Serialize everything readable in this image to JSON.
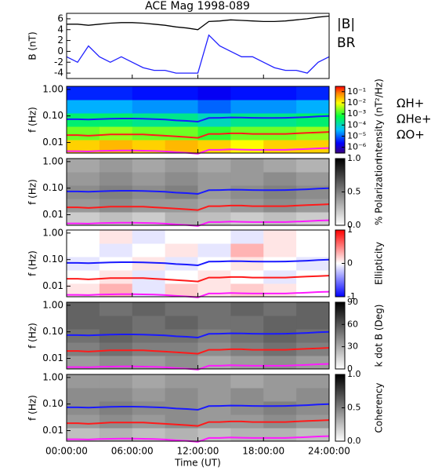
{
  "chart_data": [
    {
      "type": "line",
      "title": "ACE Mag 1998-089",
      "ylabel": "B (nT)",
      "x": [
        0,
        1,
        2,
        3,
        4,
        5,
        6,
        7,
        8,
        9,
        10,
        11,
        12,
        13,
        14,
        15,
        16,
        17,
        18,
        19,
        20,
        21,
        22,
        23,
        24
      ],
      "series": [
        {
          "name": "|B|",
          "color": "#000000",
          "values": [
            5.0,
            5.0,
            4.8,
            5.0,
            5.2,
            5.3,
            5.3,
            5.2,
            5.0,
            4.8,
            4.5,
            4.3,
            4.0,
            5.5,
            5.6,
            5.8,
            5.7,
            5.6,
            5.5,
            5.5,
            5.6,
            5.8,
            6.0,
            6.3,
            6.5
          ]
        },
        {
          "name": "BR",
          "color": "#2020ff",
          "values": [
            -1,
            -2,
            1,
            -1,
            -2,
            -1,
            -2,
            -3,
            -3.5,
            -3.5,
            -4,
            -4,
            -4,
            3,
            1,
            0,
            -1,
            -1,
            -2,
            -3,
            -3.5,
            -3.5,
            -4,
            -2,
            -1
          ]
        }
      ],
      "ylim": [
        -5,
        7
      ],
      "yticks": [
        -4,
        -2,
        0,
        2,
        4,
        6
      ]
    },
    {
      "type": "heatmap",
      "ylabel": "f (Hz)",
      "zlabel": "Intensity (nT²/Hz)",
      "log_y": true,
      "log_z": true,
      "colormap": "jet",
      "ylim": [
        0.004,
        1.3
      ],
      "yticks": [
        {
          "value": 1,
          "label": "1.00"
        },
        {
          "value": 0.1,
          "label": "0.10"
        },
        {
          "value": 0.01,
          "label": "0.01"
        }
      ],
      "zlim": [
        3e-07,
        0.3
      ],
      "zticks": [
        {
          "value": 0.1,
          "label": "10⁻¹"
        },
        {
          "value": 0.01,
          "label": "10⁻²"
        },
        {
          "value": 0.001,
          "label": "10⁻³"
        },
        {
          "value": 0.0001,
          "label": "10⁻⁴"
        },
        {
          "value": 1e-05,
          "label": "10⁻⁵"
        },
        {
          "value": 1e-06,
          "label": "10⁻⁶"
        }
      ],
      "z": [
        [
          0.02,
          0.03,
          0.02,
          0.03,
          0.02,
          0.01,
          0.02,
          0.02
        ],
        [
          0.002,
          0.003,
          0.002,
          0.002,
          0.001,
          0.002,
          0.002,
          0.003
        ],
        [
          0.0003,
          0.0003,
          0.0002,
          0.0002,
          0.0001,
          0.0002,
          0.0002,
          0.0003
        ],
        [
          3e-05,
          3e-05,
          2e-05,
          2e-05,
          1e-05,
          2e-05,
          2e-05,
          3e-05
        ],
        [
          4e-06,
          4e-06,
          3e-06,
          3e-06,
          2e-06,
          3e-06,
          3e-06,
          4e-06
        ]
      ],
      "x": [
        0,
        1,
        2,
        3,
        4,
        5,
        6,
        7,
        8,
        9,
        10,
        11,
        12,
        13,
        14,
        15,
        16,
        17,
        18,
        19,
        20,
        21,
        22,
        23,
        24
      ],
      "series": [
        {
          "name": "ΩH+",
          "color": "#1a1aff",
          "values": [
            0.075,
            0.075,
            0.073,
            0.076,
            0.079,
            0.08,
            0.08,
            0.079,
            0.076,
            0.073,
            0.068,
            0.065,
            0.061,
            0.084,
            0.085,
            0.088,
            0.087,
            0.085,
            0.084,
            0.084,
            0.085,
            0.088,
            0.091,
            0.096,
            0.099
          ]
        },
        {
          "name": "ΩHe+",
          "color": "#ff1a1a",
          "values": [
            0.019,
            0.019,
            0.018,
            0.019,
            0.02,
            0.02,
            0.02,
            0.02,
            0.019,
            0.018,
            0.017,
            0.016,
            0.015,
            0.021,
            0.021,
            0.022,
            0.022,
            0.021,
            0.021,
            0.021,
            0.021,
            0.022,
            0.023,
            0.024,
            0.025
          ]
        },
        {
          "name": "ΩO+",
          "color": "#ff1aff",
          "values": [
            0.0047,
            0.0047,
            0.0046,
            0.0048,
            0.0049,
            0.005,
            0.005,
            0.0049,
            0.0048,
            0.0046,
            0.0043,
            0.0041,
            0.0038,
            0.0053,
            0.0053,
            0.0055,
            0.0054,
            0.0053,
            0.0053,
            0.0053,
            0.0053,
            0.0055,
            0.0057,
            0.006,
            0.0062
          ]
        }
      ]
    },
    {
      "type": "heatmap",
      "ylabel": "f (Hz)",
      "zlabel": "% Polarization",
      "log_y": true,
      "colormap": "gray",
      "ylim": [
        0.004,
        1.3
      ],
      "yticks": [
        {
          "value": 1,
          "label": "1.00"
        },
        {
          "value": 0.1,
          "label": "0.10"
        },
        {
          "value": 0.01,
          "label": "0.01"
        }
      ],
      "zlim": [
        0,
        1
      ],
      "zticks": [
        {
          "value": 1,
          "label": "1.0"
        },
        {
          "value": 0.5,
          "label": "0.5"
        },
        {
          "value": 0,
          "label": "0.0"
        }
      ],
      "z": [
        [
          0.2,
          0.25,
          0.2,
          0.3,
          0.25,
          0.2,
          0.25,
          0.2
        ],
        [
          0.4,
          0.45,
          0.4,
          0.4,
          0.35,
          0.4,
          0.45,
          0.4
        ],
        [
          0.45,
          0.5,
          0.45,
          0.5,
          0.4,
          0.45,
          0.5,
          0.45
        ],
        [
          0.4,
          0.45,
          0.4,
          0.45,
          0.4,
          0.4,
          0.45,
          0.4
        ],
        [
          0.35,
          0.4,
          0.35,
          0.4,
          0.35,
          0.4,
          0.35,
          0.3
        ]
      ]
    },
    {
      "type": "heatmap",
      "ylabel": "f (Hz)",
      "zlabel": "Ellipticity",
      "log_y": true,
      "colormap": "bwr",
      "ylim": [
        0.004,
        1.3
      ],
      "yticks": [
        {
          "value": 1,
          "label": "1.00"
        },
        {
          "value": 0.1,
          "label": "0.10"
        },
        {
          "value": 0.01,
          "label": "0.01"
        }
      ],
      "zlim": [
        -1,
        1
      ],
      "zticks": [
        1,
        0,
        -1
      ],
      "z": [
        [
          0.1,
          0.3,
          -0.1,
          0.2,
          0.1,
          0.2,
          0.1,
          0.0
        ],
        [
          0.0,
          0.1,
          -0.1,
          0.0,
          0.1,
          0.0,
          -0.1,
          0.0
        ],
        [
          -0.1,
          0.0,
          0.1,
          -0.1,
          0.0,
          0.1,
          0.0,
          -0.1
        ],
        [
          0.0,
          -0.1,
          0.0,
          0.1,
          -0.1,
          0.3,
          0.1,
          0.0
        ],
        [
          0.0,
          0.1,
          -0.1,
          0.0,
          0.0,
          -0.1,
          0.1,
          0.0
        ]
      ]
    },
    {
      "type": "heatmap",
      "ylabel": "f (Hz)",
      "zlabel": "k dot B (Deg)",
      "log_y": true,
      "colormap": "gray",
      "ylim": [
        0.004,
        1.3
      ],
      "yticks": [
        {
          "value": 1,
          "label": "1.00"
        },
        {
          "value": 0.1,
          "label": "0.10"
        },
        {
          "value": 0.01,
          "label": "0.01"
        }
      ],
      "zlim": [
        0,
        90
      ],
      "zticks": [
        90,
        60,
        30,
        0
      ],
      "z": [
        [
          35,
          40,
          35,
          40,
          30,
          35,
          40,
          35
        ],
        [
          45,
          50,
          45,
          45,
          40,
          45,
          50,
          45
        ],
        [
          50,
          55,
          50,
          50,
          45,
          50,
          55,
          50
        ],
        [
          55,
          55,
          50,
          55,
          50,
          50,
          55,
          55
        ],
        [
          55,
          50,
          55,
          50,
          50,
          55,
          50,
          55
        ]
      ]
    },
    {
      "type": "heatmap",
      "ylabel": "f (Hz)",
      "zlabel": "Coherency",
      "log_y": true,
      "colormap": "gray",
      "ylim": [
        0.004,
        1.3
      ],
      "yticks": [
        {
          "value": 1,
          "label": "1.00"
        },
        {
          "value": 0.1,
          "label": "0.10"
        },
        {
          "value": 0.01,
          "label": "0.01"
        }
      ],
      "zlim": [
        0,
        1
      ],
      "zticks": [
        {
          "value": 1,
          "label": "1.0"
        },
        {
          "value": 0.5,
          "label": "0.5"
        },
        {
          "value": 0,
          "label": "0.0"
        }
      ],
      "z": [
        [
          0.25,
          0.3,
          0.25,
          0.3,
          0.25,
          0.3,
          0.3,
          0.25
        ],
        [
          0.4,
          0.45,
          0.4,
          0.45,
          0.4,
          0.4,
          0.45,
          0.4
        ],
        [
          0.45,
          0.5,
          0.45,
          0.45,
          0.4,
          0.45,
          0.5,
          0.45
        ],
        [
          0.45,
          0.45,
          0.4,
          0.45,
          0.4,
          0.45,
          0.4,
          0.45
        ],
        [
          0.4,
          0.4,
          0.35,
          0.4,
          0.4,
          0.35,
          0.4,
          0.4
        ]
      ],
      "xlabel": "Time (UT)",
      "xlim": [
        0,
        24
      ],
      "xticks": [
        {
          "value": 0,
          "label": "00:00:00"
        },
        {
          "value": 6,
          "label": "06:00:00"
        },
        {
          "value": 12,
          "label": "12:00:00"
        },
        {
          "value": 18,
          "label": "18:00:00"
        },
        {
          "value": 24,
          "label": "24:00:00"
        }
      ]
    }
  ]
}
